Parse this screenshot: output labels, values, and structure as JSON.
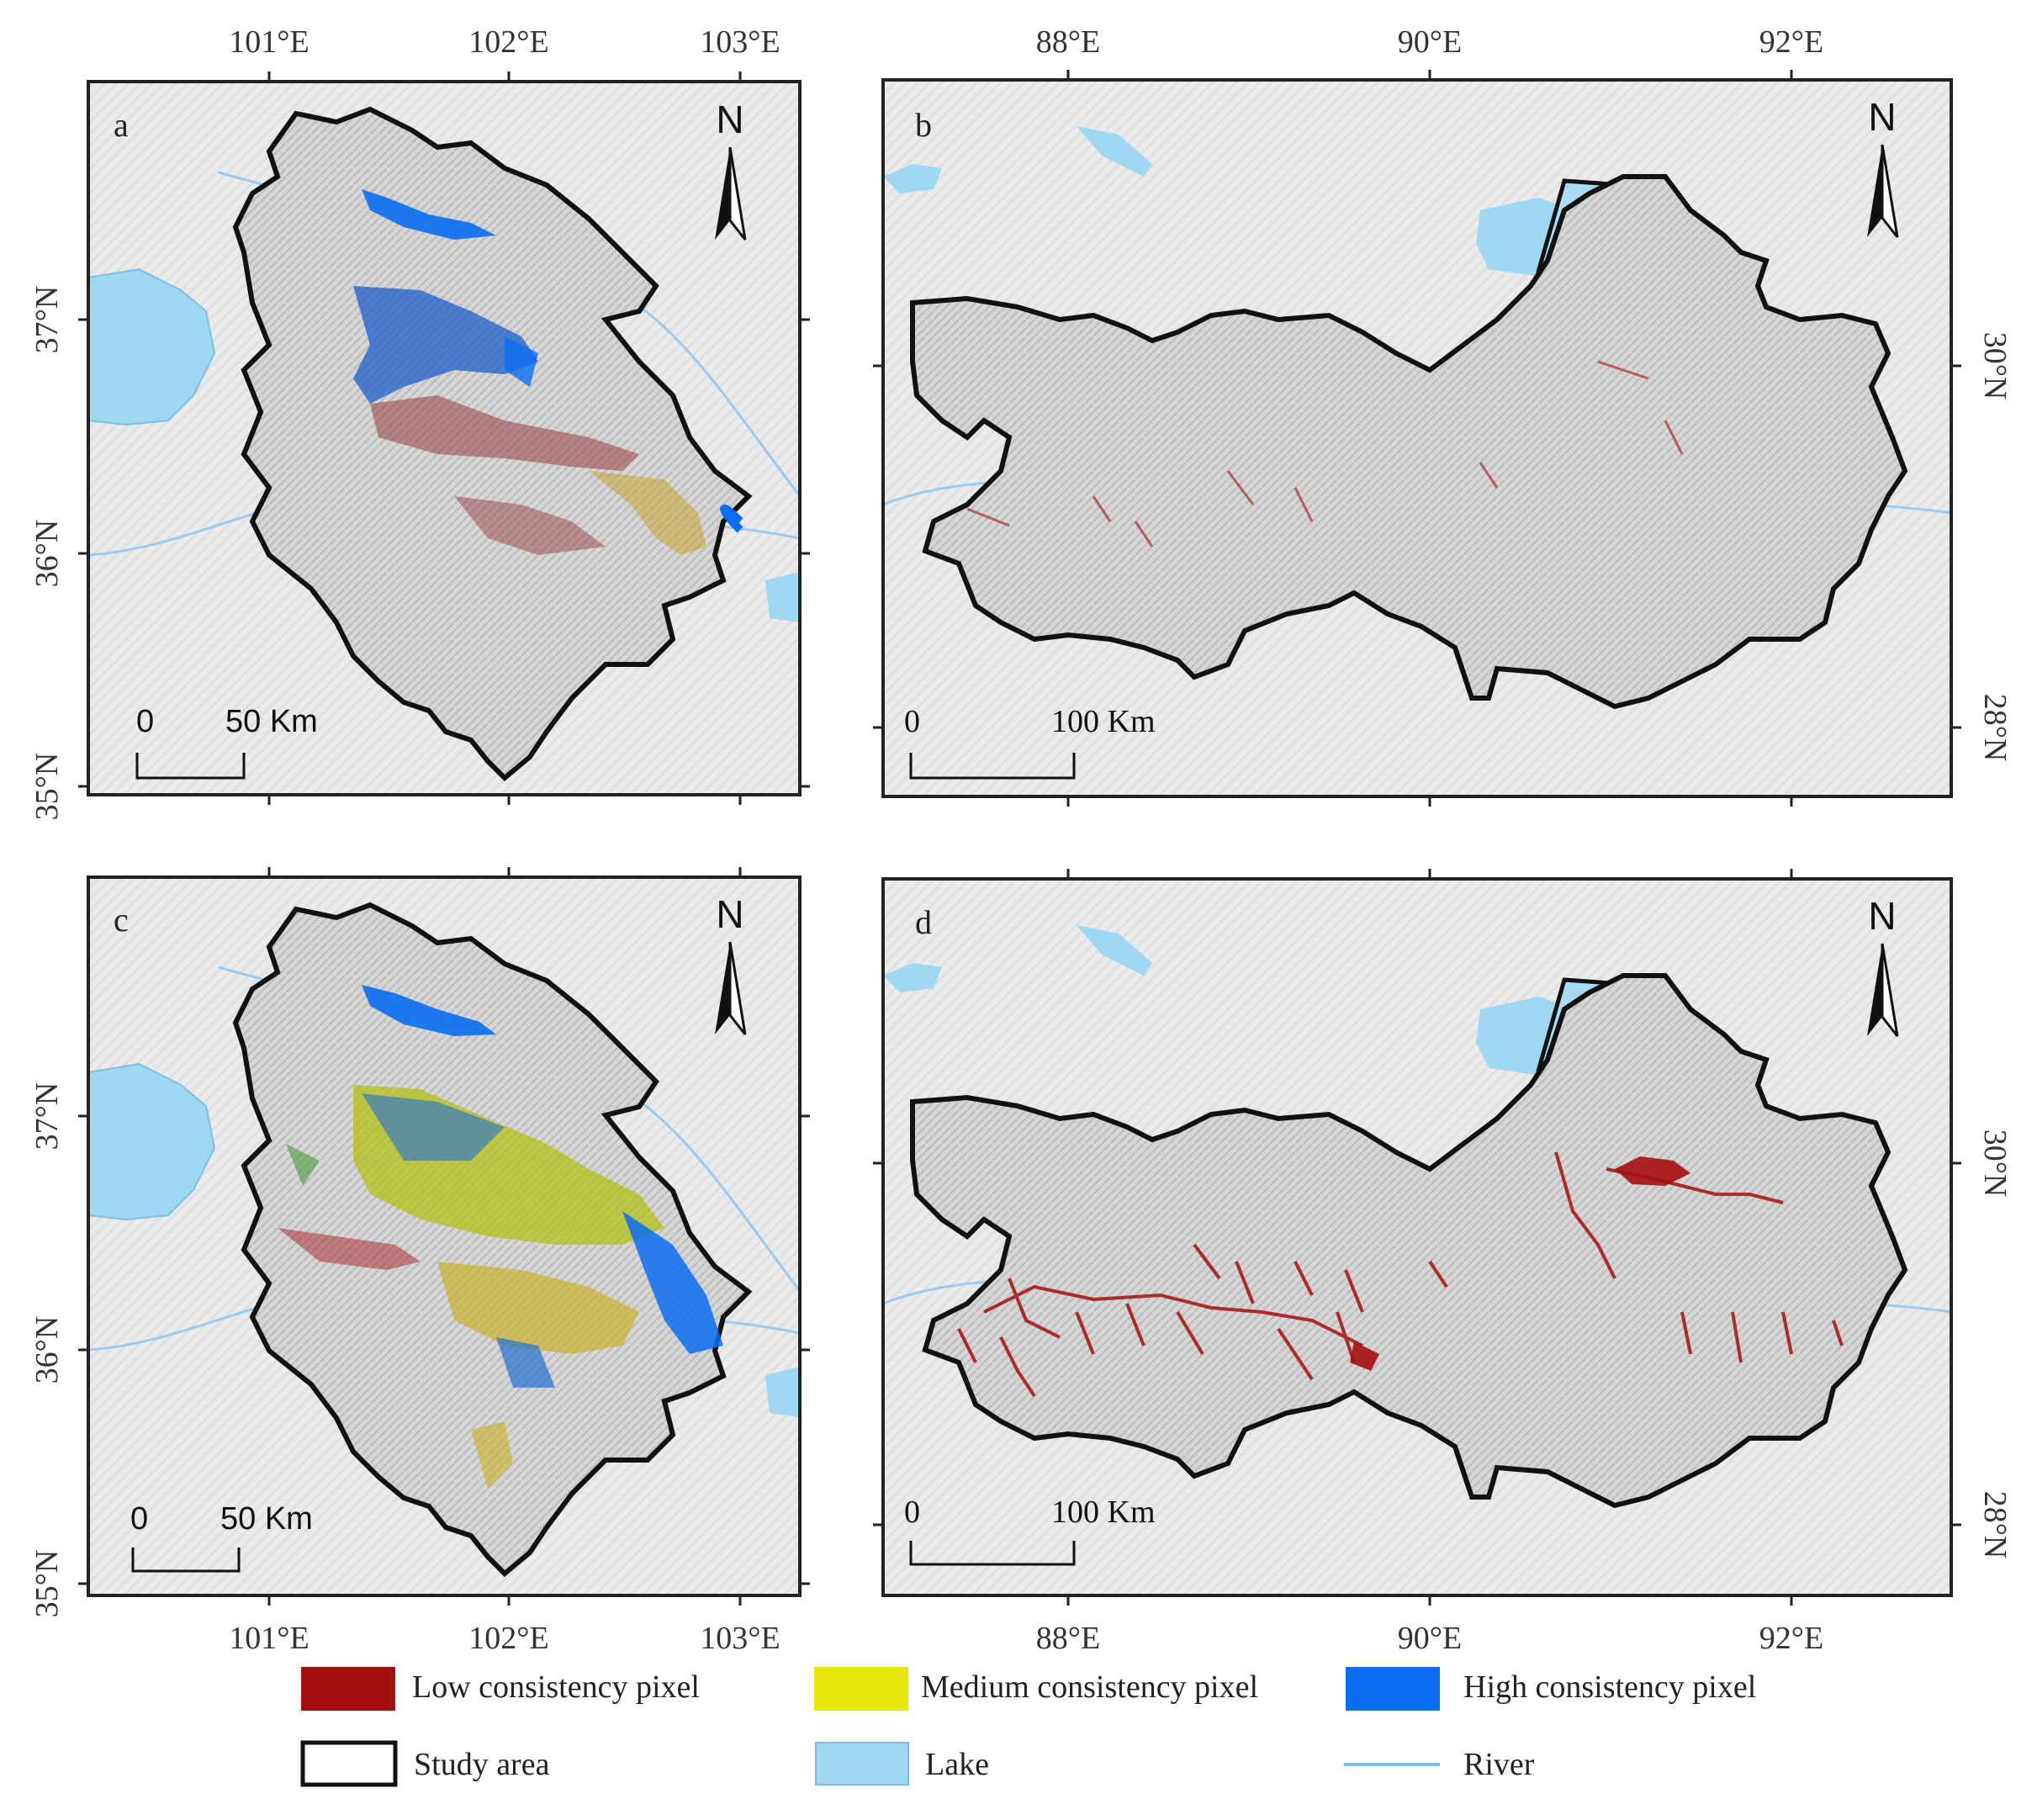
{
  "panels": [
    {
      "id": "a",
      "letter": "a",
      "scale": {
        "zero": "0",
        "dist": "50 Km"
      },
      "north": "N"
    },
    {
      "id": "b",
      "letter": "b",
      "scale": {
        "zero": "0",
        "dist": "100 Km"
      },
      "north": "N"
    },
    {
      "id": "c",
      "letter": "c",
      "scale": {
        "zero": "0",
        "dist": "50 Km"
      },
      "north": "N"
    },
    {
      "id": "d",
      "letter": "d",
      "scale": {
        "zero": "0",
        "dist": "100 Km"
      },
      "north": "N"
    }
  ],
  "axes": {
    "left_lon": [
      "101°E",
      "102°E",
      "103°E"
    ],
    "left_lat": [
      "37°N",
      "36°N",
      "35°N"
    ],
    "right_lon": [
      "88°E",
      "90°E",
      "92°E"
    ],
    "right_lat": [
      "30°N",
      "28°N"
    ]
  },
  "legend": {
    "items": [
      {
        "label": "Low consistency pixel",
        "color": "#a50f0f",
        "kind": "fill"
      },
      {
        "label": "Medium consistency pixel",
        "color": "#e8e80a",
        "kind": "fill"
      },
      {
        "label": "High consistency pixel",
        "color": "#0a6ef0",
        "kind": "fill"
      },
      {
        "label": "Study area",
        "color": "#111111",
        "kind": "outline"
      },
      {
        "label": "Lake",
        "color": "#9fd8f3",
        "kind": "lake"
      },
      {
        "label": "River",
        "color": "#7fb8ee",
        "kind": "line"
      }
    ]
  },
  "colors": {
    "background": "#efefef",
    "terrain": "#dcdcdc",
    "boundary": "#111111",
    "lake": "#9fd8f3",
    "river": "#8cc0ee",
    "low": "#a50f0f",
    "medium": "#e8e80a",
    "high": "#0a6ef0"
  }
}
